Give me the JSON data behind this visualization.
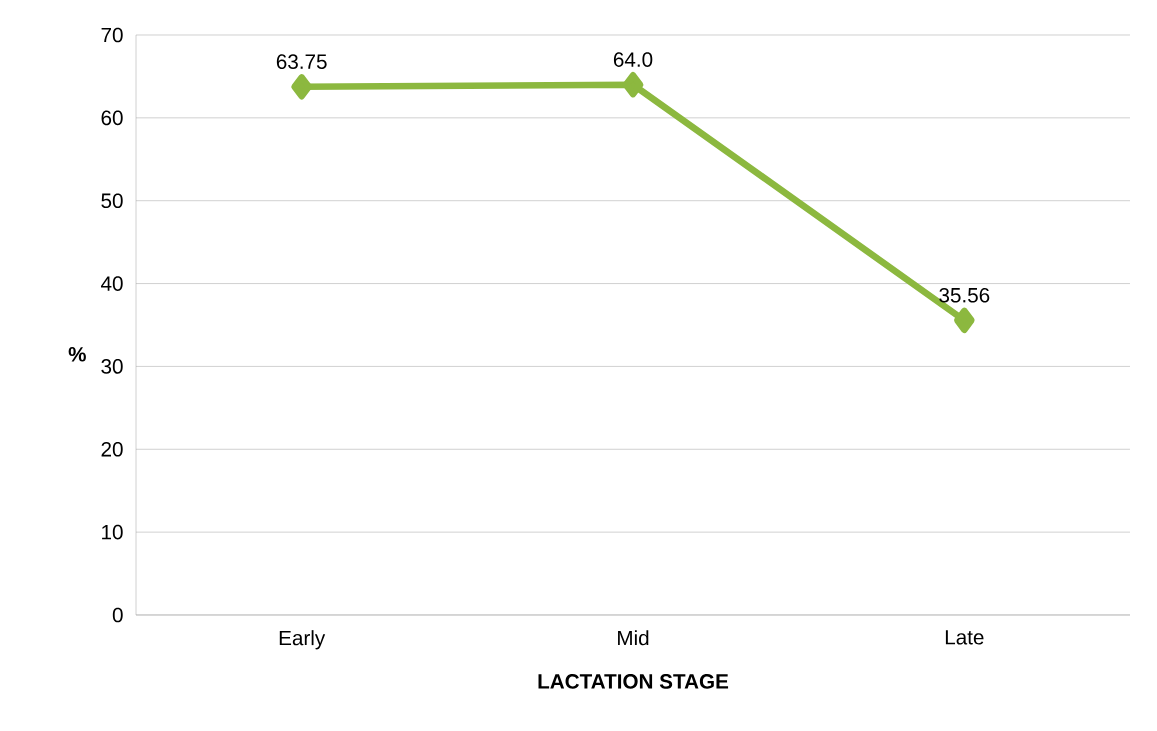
{
  "chart_data": {
    "type": "line",
    "xlabel": "LACTATION  STAGE",
    "ylabel": "%",
    "categories": [
      "Early",
      "Mid",
      "Late"
    ],
    "series": [
      {
        "color": "#8cb83f",
        "values": [
          63.75,
          64.0,
          35.56
        ],
        "value_labels": [
          "63.75",
          "64.0",
          "35.56"
        ]
      }
    ],
    "ylim": [
      0,
      70
    ],
    "yticks": [
      0,
      10,
      20,
      30,
      40,
      50,
      60,
      70
    ],
    "grid": "y",
    "marker": "diamond",
    "line_style": "solid"
  }
}
